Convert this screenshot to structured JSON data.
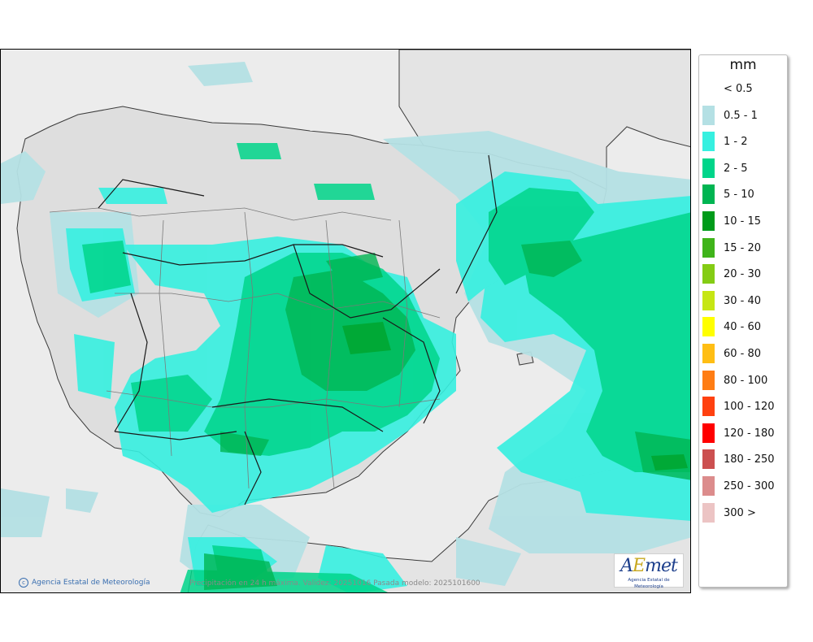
{
  "legend": {
    "unit": "mm",
    "classes": [
      {
        "label": "< 0.5",
        "color": "#ffffff"
      },
      {
        "label": "0.5 - 1",
        "color": "#b4e0e4"
      },
      {
        "label": "1 - 2",
        "color": "#36f0e0"
      },
      {
        "label": "2 - 5",
        "color": "#00d58a"
      },
      {
        "label": "5 - 10",
        "color": "#00b552"
      },
      {
        "label": "10 - 15",
        "color": "#009b1a"
      },
      {
        "label": "15 - 20",
        "color": "#3fb41a"
      },
      {
        "label": "20 - 30",
        "color": "#84cc14"
      },
      {
        "label": "30 - 40",
        "color": "#c6e614"
      },
      {
        "label": "40 - 60",
        "color": "#ffff00"
      },
      {
        "label": "60 - 80",
        "color": "#ffbe14"
      },
      {
        "label": "80 - 100",
        "color": "#ff7d14"
      },
      {
        "label": "100 - 120",
        "color": "#ff4110"
      },
      {
        "label": "120 - 180",
        "color": "#ff0000"
      },
      {
        "label": "180 - 250",
        "color": "#cc5050"
      },
      {
        "label": "250 - 300",
        "color": "#dc8c8c"
      },
      {
        "label": "300 >",
        "color": "#ecc4c4"
      }
    ]
  },
  "map": {
    "caption": "Precipitación en 24 h máxima. Validez: 20251016 Pasada modelo: 2025101600",
    "credit": "Agencia Estatal de Meteorología",
    "logo_text": "AEmet",
    "logo_subtitle": "Agencia Estatal de Meteorología",
    "colors": {
      "land": "#dcdcdc",
      "sea": "#ececec",
      "border": "#333333"
    }
  }
}
